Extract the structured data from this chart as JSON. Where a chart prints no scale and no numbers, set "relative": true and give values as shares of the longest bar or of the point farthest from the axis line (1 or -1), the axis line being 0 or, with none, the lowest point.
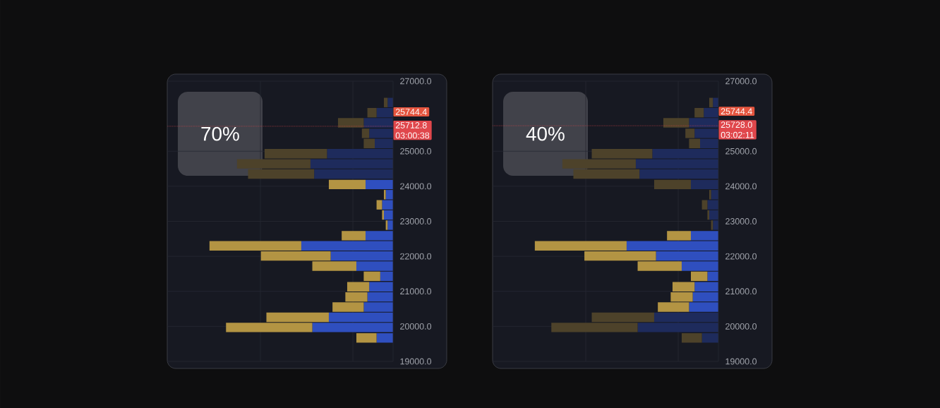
{
  "chart_data": [
    {
      "type": "bar",
      "orientation": "horizontal",
      "stacked": true,
      "relative": true,
      "title": "70%",
      "x": [
        26390,
        26100,
        25810,
        25510,
        25220,
        24930,
        24640,
        24350,
        24050,
        23760,
        23470,
        23180,
        22890,
        22590,
        22300,
        22010,
        21720,
        21430,
        21130,
        20840,
        20550,
        20260,
        19970,
        19670
      ],
      "series": [
        {
          "values": [
            0.03,
            0.09,
            0.16,
            0.13,
            0.1,
            0.36,
            0.45,
            0.43,
            0.15,
            0.04,
            0.06,
            0.05,
            0.03,
            0.15,
            0.5,
            0.34,
            0.2,
            0.07,
            0.13,
            0.14,
            0.16,
            0.35,
            0.44,
            0.09
          ],
          "colors": [
            "#1e2b5c",
            "#1e2b5c",
            "#1e2b5c",
            "#1e2b5c",
            "#1e2b5c",
            "#1e2b5c",
            "#1e2b5c",
            "#1e2b5c",
            "#2f4fbf",
            "#2f4fbf",
            "#2f4fbf",
            "#2f4fbf",
            "#2f4fbf",
            "#2f4fbf",
            "#2f4fbf",
            "#2f4fbf",
            "#2f4fbf",
            "#2f4fbf",
            "#2f4fbf",
            "#2f4fbf",
            "#2f4fbf",
            "#2f4fbf",
            "#2f4fbf",
            "#2f4fbf"
          ]
        },
        {
          "values": [
            0.02,
            0.05,
            0.14,
            0.04,
            0.06,
            0.34,
            0.4,
            0.36,
            0.2,
            0.01,
            0.03,
            0.01,
            0.01,
            0.13,
            0.5,
            0.38,
            0.24,
            0.09,
            0.12,
            0.12,
            0.17,
            0.34,
            0.47,
            0.11
          ],
          "colors": [
            "#4d422a",
            "#4d422a",
            "#4d422a",
            "#4d422a",
            "#4d422a",
            "#4d422a",
            "#4d422a",
            "#4d422a",
            "#b39443",
            "#b39443",
            "#b39443",
            "#b39443",
            "#b39443",
            "#b39443",
            "#b39443",
            "#b39443",
            "#b39443",
            "#b39443",
            "#b39443",
            "#b39443",
            "#b39443",
            "#b39443",
            "#b39443",
            "#b39443"
          ]
        }
      ],
      "ylim": [
        19000,
        27000
      ],
      "yticks": [
        {
          "value": 19000,
          "label": "19000.0"
        },
        {
          "value": 20000,
          "label": "20000.0"
        },
        {
          "value": 21000,
          "label": "21000.0"
        },
        {
          "value": 22000,
          "label": "22000.0"
        },
        {
          "value": 23000,
          "label": "23000.0"
        },
        {
          "value": 24000,
          "label": "24000.0"
        },
        {
          "value": 25000,
          "label": "25000.0"
        },
        {
          "value": 27000,
          "label": "27000.0"
        }
      ],
      "grid": true,
      "ref_lines": [
        {
          "axis": "y",
          "value": 25712.8,
          "label": "25712.8",
          "color": "#e0474c",
          "line_style": "dotted"
        }
      ],
      "annotations": [
        "25744.4",
        "03:00:38"
      ]
    },
    {
      "type": "bar",
      "orientation": "horizontal",
      "stacked": true,
      "relative": true,
      "title": "40%",
      "x": [
        26390,
        26100,
        25810,
        25510,
        25220,
        24930,
        24640,
        24350,
        24050,
        23760,
        23470,
        23180,
        22890,
        22590,
        22300,
        22010,
        21720,
        21430,
        21130,
        20840,
        20550,
        20260,
        19970,
        19670
      ],
      "series": [
        {
          "values": [
            0.03,
            0.08,
            0.16,
            0.13,
            0.1,
            0.36,
            0.45,
            0.43,
            0.15,
            0.04,
            0.06,
            0.05,
            0.03,
            0.15,
            0.5,
            0.34,
            0.2,
            0.06,
            0.13,
            0.14,
            0.16,
            0.35,
            0.44,
            0.09
          ],
          "colors": [
            "#1e2b5c",
            "#1e2b5c",
            "#1e2b5c",
            "#1e2b5c",
            "#1e2b5c",
            "#1e2b5c",
            "#1e2b5c",
            "#1e2b5c",
            "#1e2b5c",
            "#1e2b5c",
            "#1e2b5c",
            "#1e2b5c",
            "#1e2b5c",
            "#2f4fbf",
            "#2f4fbf",
            "#2f4fbf",
            "#2f4fbf",
            "#2f4fbf",
            "#2f4fbf",
            "#2f4fbf",
            "#2f4fbf",
            "#1e2b5c",
            "#1e2b5c",
            "#1e2b5c"
          ]
        },
        {
          "values": [
            0.02,
            0.05,
            0.14,
            0.05,
            0.06,
            0.33,
            0.4,
            0.36,
            0.2,
            0.01,
            0.03,
            0.01,
            0.01,
            0.13,
            0.5,
            0.39,
            0.24,
            0.09,
            0.12,
            0.12,
            0.17,
            0.34,
            0.47,
            0.11
          ],
          "colors": [
            "#4d422a",
            "#4d422a",
            "#4d422a",
            "#4d422a",
            "#4d422a",
            "#4d422a",
            "#4d422a",
            "#4d422a",
            "#4d422a",
            "#4d422a",
            "#4d422a",
            "#4d422a",
            "#4d422a",
            "#b39443",
            "#b39443",
            "#b39443",
            "#b39443",
            "#b39443",
            "#b39443",
            "#b39443",
            "#b39443",
            "#4d422a",
            "#4d422a",
            "#4d422a"
          ]
        }
      ],
      "ylim": [
        19000,
        27000
      ],
      "yticks": [
        {
          "value": 19000,
          "label": "19000.0"
        },
        {
          "value": 20000,
          "label": "20000.0"
        },
        {
          "value": 21000,
          "label": "21000.0"
        },
        {
          "value": 22000,
          "label": "22000.0"
        },
        {
          "value": 23000,
          "label": "23000.0"
        },
        {
          "value": 24000,
          "label": "24000.0"
        },
        {
          "value": 25000,
          "label": "25000.0"
        },
        {
          "value": 27000,
          "label": "27000.0"
        }
      ],
      "grid": true,
      "ref_lines": [
        {
          "axis": "y",
          "value": 25728.0,
          "label": "25728.0",
          "color": "#e0474c",
          "line_style": "dotted"
        }
      ],
      "annotations": [
        "25744.4",
        "03:02:11"
      ]
    }
  ]
}
